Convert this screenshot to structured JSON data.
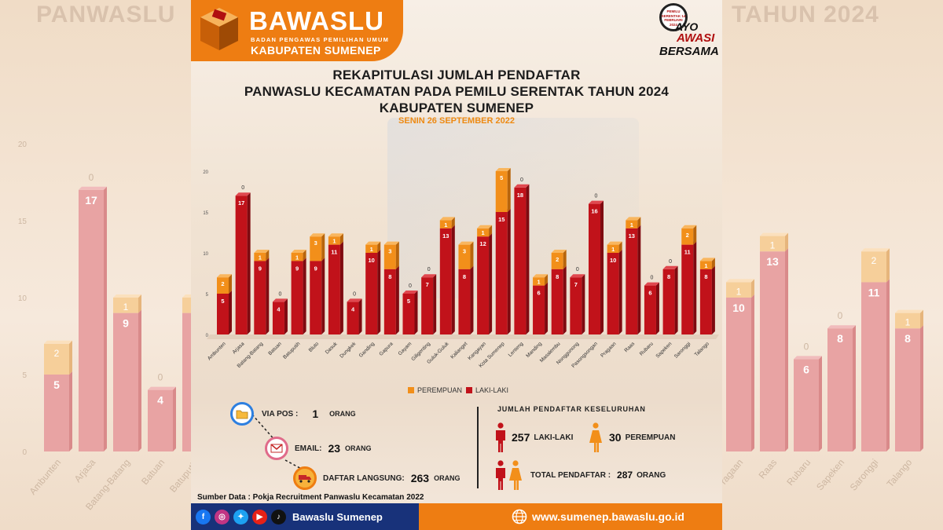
{
  "background": {
    "left_title": "PANWASLU",
    "right_title": "TAHUN 2024",
    "left_categories": [
      "Ambunten",
      "Arjasa",
      "Batang-Batang",
      "Batuan",
      "Batuputih"
    ],
    "right_categories": [
      "Pragaan",
      "Raas",
      "Rubaru",
      "Sapeken",
      "Saronggi",
      "Talango"
    ],
    "left_ticks": [
      "20",
      "15",
      "10",
      "5",
      "0"
    ]
  },
  "header": {
    "logo_name": "BAWASLU",
    "logo_subtitle": "BADAN PENGAWAS PEMILIHAN UMUM",
    "logo_region": "KABUPATEN SUMENEP",
    "badge_small": "PEMILU SERENTAK 14 FEBRUARI 2024",
    "badge_line1": "AYO",
    "badge_line2": "AWASI",
    "badge_line3": "BERSAMA"
  },
  "title": {
    "line1": "REKAPITULASI JUMLAH PENDAFTAR",
    "line2": "PANWASLU KECAMATAN PADA PEMILU SERENTAK TAHUN 2024",
    "line3": "KABUPATEN SUMENEP",
    "date": "SENIN 26 SEPTEMBER 2022"
  },
  "colors": {
    "male": "#c1121a",
    "male_side": "#7f0a10",
    "female": "#f28f1a",
    "female_side": "#b8650c",
    "orange_brand": "#ee7d12",
    "navy": "#18327a"
  },
  "chart_data": {
    "type": "bar",
    "stacked": true,
    "title": "REKAPITULASI JUMLAH PENDAFTAR PANWASLU KECAMATAN PADA PEMILU SERENTAK TAHUN 2024 KABUPATEN SUMENEP",
    "categories": [
      "Ambunten",
      "Arjasa",
      "Batang-Batang",
      "Batuan",
      "Batuputih",
      "Bluto",
      "Dasuk",
      "Dungkek",
      "Ganding",
      "Gapura",
      "Gayam",
      "Giligenting",
      "Guluk-Guluk",
      "Kalianget",
      "Kangayan",
      "Kota Sumenep",
      "Lenteng",
      "Manding",
      "Masalembu",
      "Nonggunong",
      "Pasongsongan",
      "Pragaan",
      "Raas",
      "Rubaru",
      "Sapeken",
      "Saronggi",
      "Talango"
    ],
    "series": [
      {
        "name": "LAKI-LAKI",
        "values": [
          5,
          17,
          9,
          4,
          9,
          9,
          11,
          4,
          10,
          8,
          5,
          7,
          13,
          8,
          12,
          15,
          18,
          6,
          8,
          7,
          16,
          10,
          13,
          6,
          8,
          11,
          8
        ]
      },
      {
        "name": "PEREMPUAN",
        "values": [
          2,
          0,
          1,
          0,
          1,
          3,
          1,
          0,
          1,
          3,
          0,
          0,
          1,
          3,
          1,
          5,
          0,
          1,
          2,
          0,
          0,
          1,
          1,
          0,
          0,
          2,
          1
        ]
      }
    ],
    "yticks": [
      "0",
      "5",
      "10",
      "15",
      "20"
    ],
    "ylim": [
      0,
      20
    ],
    "legend": "bottom",
    "grid": false
  },
  "channels": [
    {
      "label": "VIA POS :",
      "value": "1",
      "unit": "ORANG",
      "icon": "folder-icon"
    },
    {
      "label": "EMAIL:",
      "value": "23",
      "unit": "ORANG",
      "icon": "gmail-icon"
    },
    {
      "label": "DAFTAR LANGSUNG:",
      "value": "263",
      "unit": "ORANG",
      "icon": "truck-icon"
    }
  ],
  "totals": {
    "heading": "JUMLAH PENDAFTAR KESELURUHAN",
    "male_value": "257",
    "male_label": "LAKI-LAKI",
    "female_value": "30",
    "female_label": "PEREMPUAN",
    "total_label": "TOTAL PENDAFTAR  :",
    "total_value": "287",
    "total_unit": "ORANG"
  },
  "source": "Sumber Data : Pokja Recruitment Panwaslu Kecamatan 2022",
  "footer": {
    "handle": "Bawaslu Sumenep",
    "url": "www.sumenep.bawaslu.go.id"
  }
}
